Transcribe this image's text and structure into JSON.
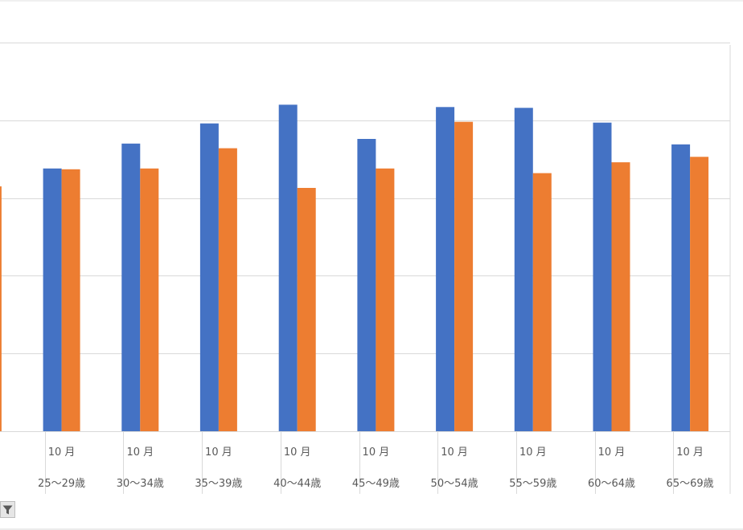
{
  "chart_data": {
    "type": "bar",
    "categories": [
      {
        "month": "10 月",
        "group": ""
      },
      {
        "month": "10 月",
        "group": "25〜29歳"
      },
      {
        "month": "10 月",
        "group": "30〜34歳"
      },
      {
        "month": "10 月",
        "group": "35〜39歳"
      },
      {
        "month": "10 月",
        "group": "40〜44歳"
      },
      {
        "month": "10 月",
        "group": "45〜49歳"
      },
      {
        "month": "10 月",
        "group": "50〜54歳"
      },
      {
        "month": "10 月",
        "group": "55〜59歳"
      },
      {
        "month": "10 月",
        "group": "60〜64歳"
      },
      {
        "month": "10 月",
        "group": "65〜69歳"
      }
    ],
    "series": [
      {
        "color": "#4472c4",
        "values": [
          null,
          3.38,
          3.7,
          3.96,
          4.2,
          3.76,
          4.17,
          4.16,
          3.97,
          3.69
        ]
      },
      {
        "color": "#ed7d31",
        "values": [
          3.15,
          3.37,
          3.38,
          3.64,
          3.13,
          3.38,
          3.98,
          3.32,
          3.46,
          3.53
        ]
      }
    ],
    "ylim": [
      0,
      5.5
    ],
    "gridlines": [
      1,
      2,
      3,
      4,
      5
    ],
    "grid": true,
    "legend": "none"
  },
  "toolbar": {
    "filter_icon": "filter-icon"
  }
}
